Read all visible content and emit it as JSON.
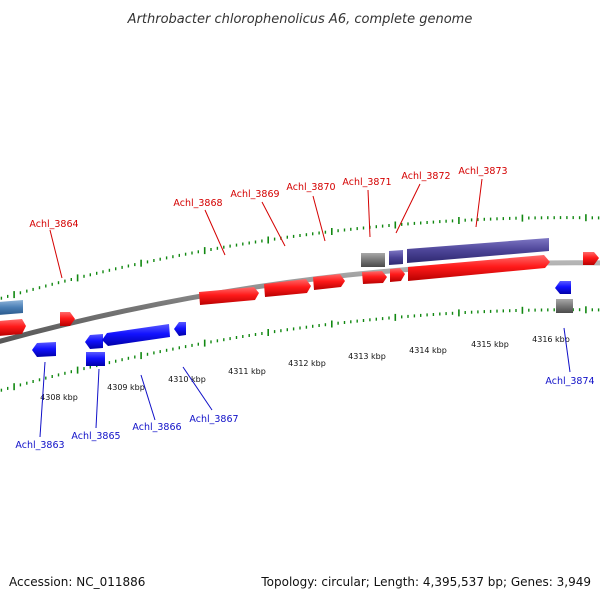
{
  "title": "Arthrobacter chlorophenolicus A6, complete genome",
  "footer": {
    "accession": "Accession: NC_011886",
    "summary": "Topology: circular; Length: 4,395,537 bp; Genes: 3,949"
  },
  "colors": {
    "forward_gene": "#ff0000",
    "reverse_gene": "#0000ff",
    "other_feature": "#777777",
    "forward_label": "#d40000",
    "reverse_label": "#1010c8",
    "tick": "#118811",
    "backbone": "#8a8a8a",
    "light_blue": "#4a7fb5",
    "purple": "#4c4497"
  },
  "tick_labels": [
    "4308 kbp",
    "4309 kbp",
    "4310 kbp",
    "4311 kbp",
    "4312 kbp",
    "4313 kbp",
    "4314 kbp",
    "4315 kbp",
    "4316 kbp"
  ],
  "forward_labels": [
    "Achl_3864",
    "Achl_3868",
    "Achl_3869",
    "Achl_3870",
    "Achl_3871",
    "Achl_3872",
    "Achl_3873"
  ],
  "reverse_labels": [
    "Achl_3863",
    "Achl_3865",
    "Achl_3866",
    "Achl_3867",
    "Achl_3874"
  ]
}
